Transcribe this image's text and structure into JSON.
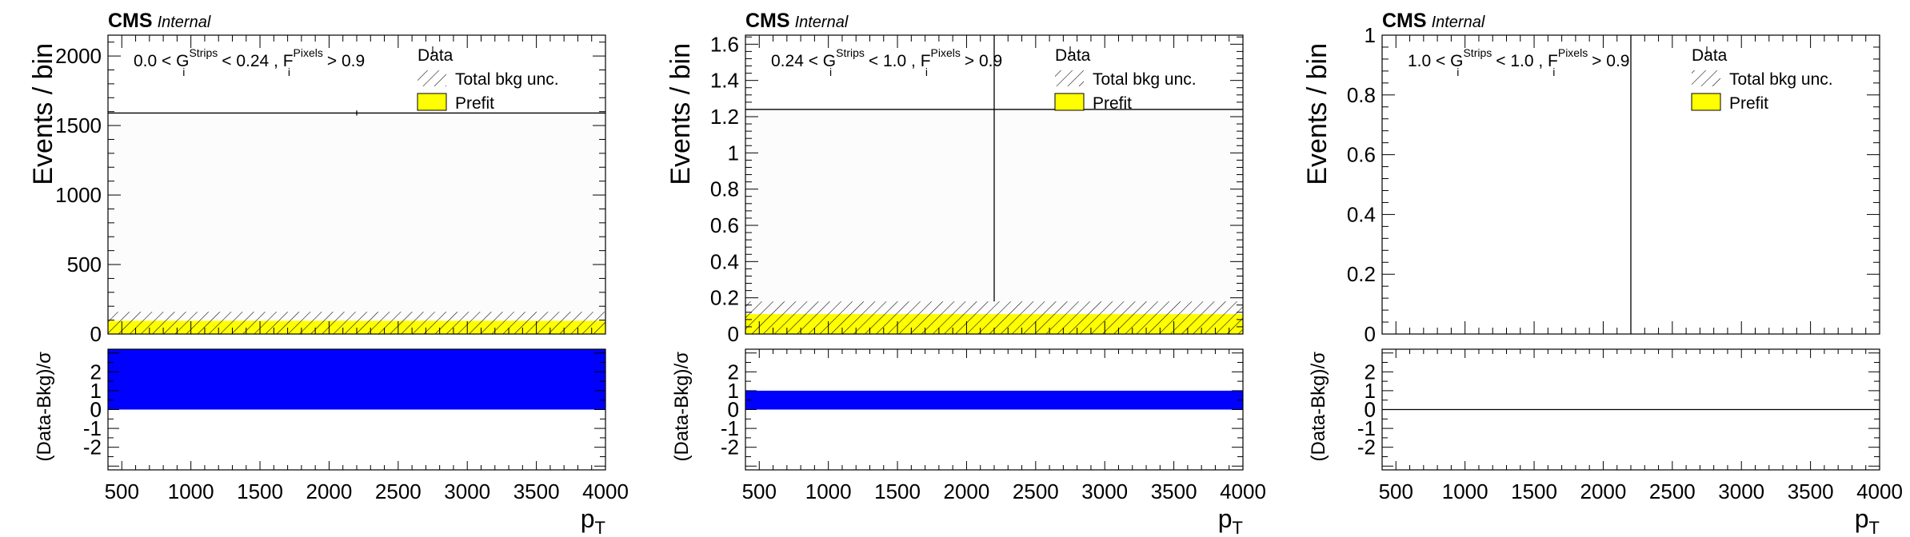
{
  "figure": {
    "experiment": "CMS",
    "status": "Internal"
  },
  "chart_data": [
    {
      "type": "bar",
      "panel": "left",
      "cms_label": "CMS",
      "cms_status": "Internal",
      "selection_label": {
        "prefix": "0.0 < G",
        "g_sup": "Strips",
        "g_sub": "i",
        "middle": " < 0.24 , F",
        "f_sup": "Pixels",
        "f_sub": "i",
        "suffix": " > 0.9"
      },
      "xlabel": "p",
      "xlabel_sub": "T",
      "ylabel": "Events / bin",
      "ratio_ylabel": "(Data-Bkg)/σ",
      "xlim": [
        400,
        4000
      ],
      "ylim": [
        0,
        2150
      ],
      "ratio_ylim": [
        -3.2,
        3.2
      ],
      "x_ticks": [
        "500",
        "1000",
        "1500",
        "2000",
        "2500",
        "3000",
        "3500",
        "4000"
      ],
      "y_ticks": [
        "0",
        "500",
        "1000",
        "1500",
        "2000"
      ],
      "ratio_y_ticks": [
        "-2",
        "-1",
        "0",
        "1",
        "2"
      ],
      "legend": {
        "data": "Data",
        "unc": "Total bkg unc.",
        "prefit": "Prefit",
        "position": "top-right"
      },
      "prefit_band": [
        0,
        95
      ],
      "bkg_unc_band": [
        0,
        160
      ],
      "data_points": [
        {
          "x": 2200,
          "y": 1590,
          "xerr": [
            400,
            4000
          ],
          "yerr": 18
        }
      ],
      "pull": {
        "x": [
          400,
          4000
        ],
        "value": 3.2
      }
    },
    {
      "type": "bar",
      "panel": "middle",
      "cms_label": "CMS",
      "cms_status": "Internal",
      "selection_label": {
        "prefix": "0.24 < G",
        "g_sup": "Strips",
        "g_sub": "i",
        "middle": " < 1.0 , F",
        "f_sup": "Pixels",
        "f_sub": "i",
        "suffix": " > 0.9"
      },
      "xlabel": "p",
      "xlabel_sub": "T",
      "ylabel": "Events / bin",
      "ratio_ylabel": "(Data-Bkg)/σ",
      "xlim": [
        400,
        4000
      ],
      "ylim": [
        0,
        1.65
      ],
      "ratio_ylim": [
        -3.2,
        3.2
      ],
      "x_ticks": [
        "500",
        "1000",
        "1500",
        "2000",
        "2500",
        "3000",
        "3500",
        "4000"
      ],
      "y_ticks": [
        "0",
        "0.2",
        "0.4",
        "0.6",
        "0.8",
        "1",
        "1.2",
        "1.4",
        "1.6"
      ],
      "ratio_y_ticks": [
        "-2",
        "-1",
        "0",
        "1",
        "2"
      ],
      "legend": {
        "data": "Data",
        "unc": "Total bkg unc.",
        "prefit": "Prefit",
        "position": "top-right"
      },
      "prefit_band": [
        0,
        0.11
      ],
      "bkg_unc_band": [
        0,
        0.18
      ],
      "data_points": [
        {
          "x": 2200,
          "y": 1.24,
          "xerr": [
            400,
            4000
          ],
          "yerr_low": 1.06,
          "yerr_high": 0.41
        }
      ],
      "pull": {
        "x": [
          400,
          4000
        ],
        "value": 1.0
      }
    },
    {
      "type": "bar",
      "panel": "right",
      "cms_label": "CMS",
      "cms_status": "Internal",
      "selection_label": {
        "prefix": "1.0 < G",
        "g_sup": "Strips",
        "g_sub": "i",
        "middle": " < 1.0 , F",
        "f_sup": "Pixels",
        "f_sub": "i",
        "suffix": " > 0.9"
      },
      "xlabel": "p",
      "xlabel_sub": "T",
      "ylabel": "Events / bin",
      "ratio_ylabel": "(Data-Bkg)/σ",
      "xlim": [
        400,
        4000
      ],
      "ylim": [
        0,
        1
      ],
      "ratio_ylim": [
        -3.2,
        3.2
      ],
      "x_ticks": [
        "500",
        "1000",
        "1500",
        "2000",
        "2500",
        "3000",
        "3500",
        "4000"
      ],
      "y_ticks": [
        "0",
        "0.2",
        "0.4",
        "0.6",
        "0.8",
        "1"
      ],
      "ratio_y_ticks": [
        "-2",
        "-1",
        "0",
        "1",
        "2"
      ],
      "legend": {
        "data": "Data",
        "unc": "Total bkg unc.",
        "prefit": "Prefit",
        "position": "top-right"
      },
      "prefit_band": null,
      "bkg_unc_band": null,
      "data_points": [
        {
          "x": 2200,
          "y": 0,
          "yerr_low": 0,
          "yerr_high": 1
        }
      ],
      "pull": {
        "x": [
          400,
          4000
        ],
        "value": 0.0
      }
    }
  ],
  "colors": {
    "prefit": "#ffff00",
    "pull": "#0000ff",
    "axis": "#000000",
    "background": "#ffffff",
    "unc_fill": "#fcfcfc"
  }
}
